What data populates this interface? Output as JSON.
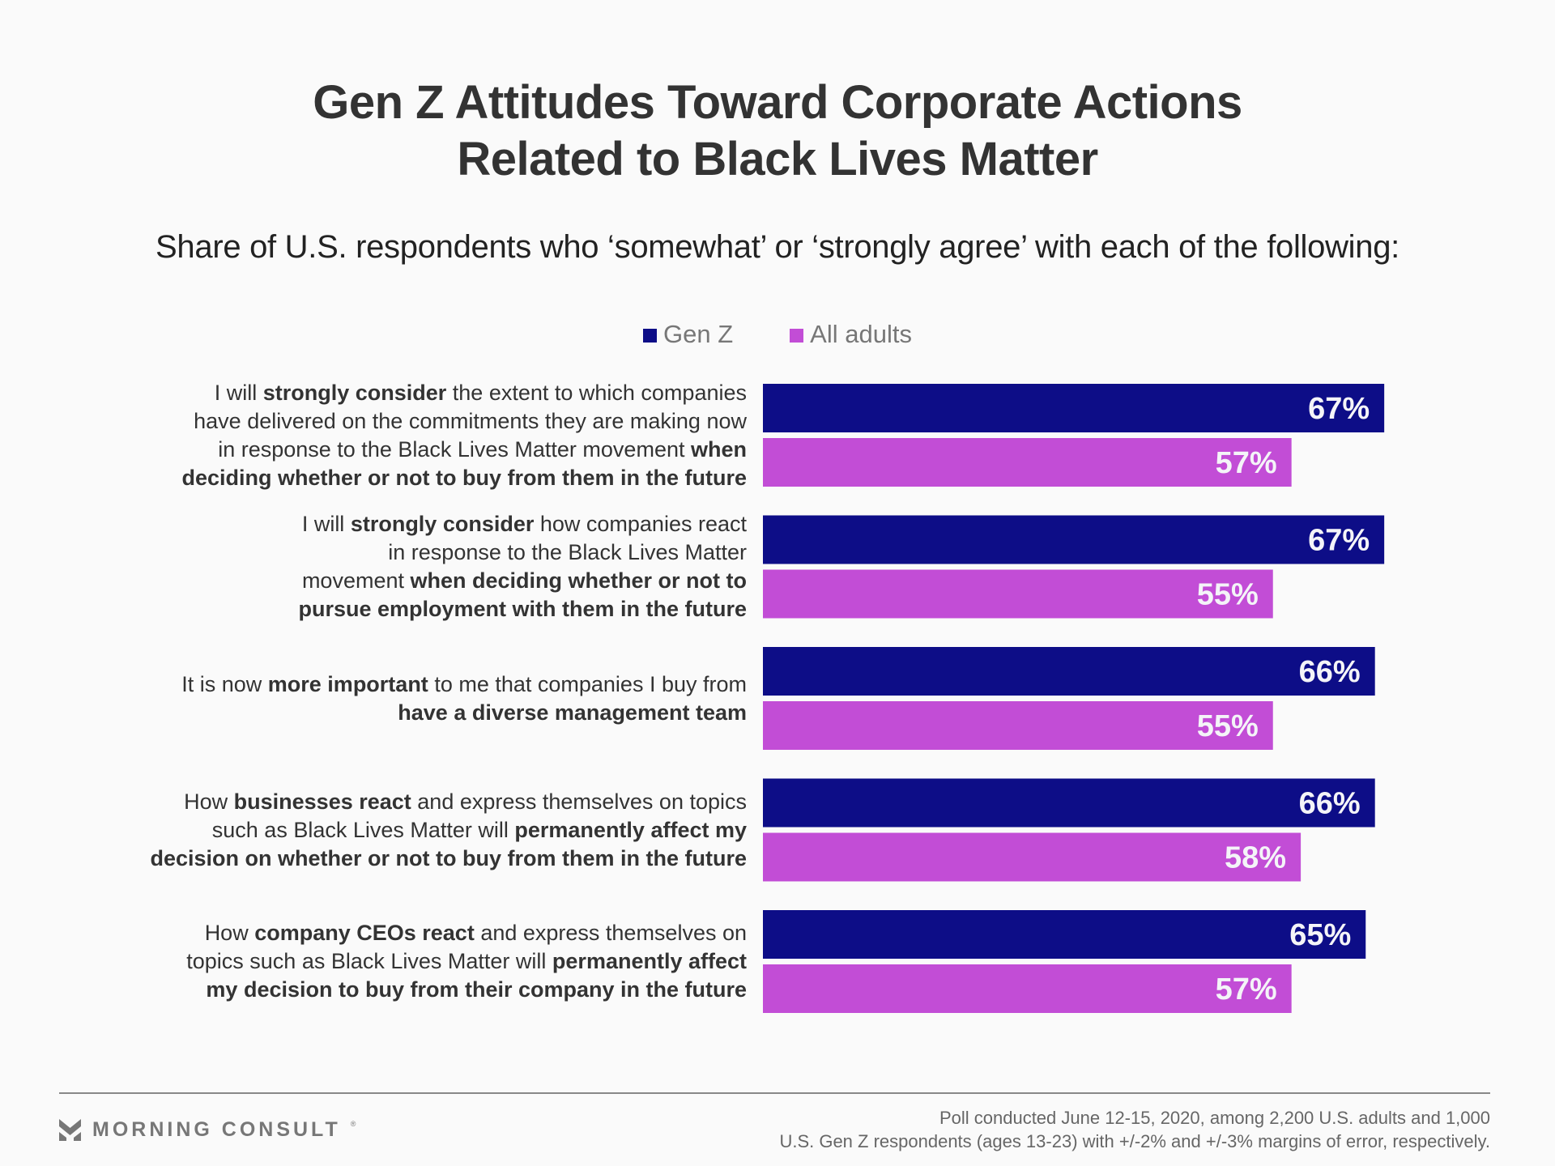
{
  "title_lines": [
    "Gen Z Attitudes Toward Corporate Actions",
    "Related to Black Lives Matter"
  ],
  "subtitle": "Share of U.S. respondents who ‘somewhat’ or ‘strongly agree’ with each of the following:",
  "colors": {
    "gen_z": "#0d0d87",
    "all_adults": "#c24dd6",
    "text": "#333333"
  },
  "legend": [
    {
      "label": "Gen Z",
      "color": "#0d0d87"
    },
    {
      "label": "All adults",
      "color": "#c24dd6"
    }
  ],
  "rows": [
    {
      "label_parts": [
        [
          [
            "I will ",
            false
          ],
          [
            "strongly consider",
            true
          ],
          [
            " the extent to which companies",
            false
          ]
        ],
        [
          [
            "have delivered on the commitments they are making now",
            false
          ]
        ],
        [
          [
            "in response to the Black Lives Matter movement ",
            false
          ],
          [
            "when",
            true
          ]
        ],
        [
          [
            "deciding whether or not to buy from them in the future",
            true
          ]
        ]
      ]
    },
    {
      "label_parts": [
        [
          [
            "I will ",
            false
          ],
          [
            "strongly consider",
            true
          ],
          [
            " how companies react",
            false
          ]
        ],
        [
          [
            "in response to the Black Lives Matter",
            false
          ]
        ],
        [
          [
            "movement ",
            false
          ],
          [
            "when deciding whether or not to",
            true
          ]
        ],
        [
          [
            "pursue employment with them in the future",
            true
          ]
        ]
      ]
    },
    {
      "label_parts": [
        [
          [
            "It is now ",
            false
          ],
          [
            "more important",
            true
          ],
          [
            " to me that companies I buy from",
            false
          ]
        ],
        [
          [
            "have a diverse management team",
            true
          ]
        ]
      ]
    },
    {
      "label_parts": [
        [
          [
            "How ",
            false
          ],
          [
            "businesses react",
            true
          ],
          [
            " and express themselves on topics",
            false
          ]
        ],
        [
          [
            "such as Black Lives Matter will ",
            false
          ],
          [
            "permanently affect my",
            true
          ]
        ],
        [
          [
            "decision on whether or not to buy from them in the future",
            true
          ]
        ]
      ]
    },
    {
      "label_parts": [
        [
          [
            "How ",
            false
          ],
          [
            "company CEOs react",
            true
          ],
          [
            " and express themselves on",
            false
          ]
        ],
        [
          [
            "topics such as Black Lives Matter will ",
            false
          ],
          [
            "permanently affect",
            true
          ]
        ],
        [
          [
            "my decision to buy from their company in the future",
            true
          ]
        ]
      ]
    }
  ],
  "chart_data": {
    "type": "bar",
    "orientation": "horizontal",
    "title": "Gen Z Attitudes Toward Corporate Actions Related to Black Lives Matter",
    "subtitle": "Share of U.S. respondents who ‘somewhat’ or ‘strongly agree’ with each of the following:",
    "categories": [
      "I will strongly consider the extent to which companies have delivered on the commitments they are making now in response to the Black Lives Matter movement when deciding whether or not to buy from them in the future",
      "I will strongly consider how companies react in response to the Black Lives Matter movement when deciding whether or not to pursue employment with them in the future",
      "It is now more important to me that companies I buy from have a diverse management team",
      "How businesses react and express themselves on topics such as Black Lives Matter will permanently affect my decision on whether or not to buy from them in the future",
      "How company CEOs react and express themselves on topics such as Black Lives Matter will permanently affect my decision to buy from their company in the future"
    ],
    "series": [
      {
        "name": "Gen Z",
        "values": [
          67,
          67,
          66,
          66,
          65
        ],
        "color": "#0d0d87"
      },
      {
        "name": "All adults",
        "values": [
          57,
          55,
          55,
          58,
          57
        ],
        "color": "#c24dd6"
      }
    ],
    "value_format": "{v}%",
    "xlim": [
      0,
      100
    ],
    "xlabel": "",
    "ylabel": "",
    "grid": false,
    "legend_position": "top-center"
  },
  "footer": {
    "brand": "MORNING CONSULT",
    "brand_mark": "®",
    "note_lines": [
      "Poll conducted June 12-15, 2020, among 2,200 U.S. adults and 1,000",
      "U.S. Gen Z respondents (ages 13-23) with +/-2% and +/-3% margins of error, respectively."
    ]
  }
}
